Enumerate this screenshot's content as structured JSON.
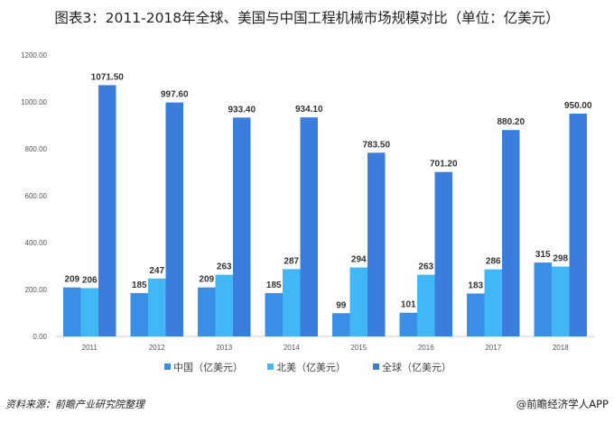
{
  "chart_data": {
    "type": "bar",
    "title": "图表3：2011-2018年全球、美国与中国工程机械市场规模对比（单位：亿美元）",
    "xlabel": "",
    "ylabel": "",
    "ylim": [
      0,
      1200
    ],
    "yticks": [
      "0.00",
      "200.00",
      "400.00",
      "600.00",
      "800.00",
      "1000.00",
      "1200.00"
    ],
    "categories": [
      "2011",
      "2012",
      "2013",
      "2014",
      "2015",
      "2016",
      "2017",
      "2018"
    ],
    "series": [
      {
        "name": "中国（亿美元）",
        "color": "#3a8ee6",
        "values": [
          209,
          185,
          209,
          185,
          99,
          101,
          183,
          315
        ],
        "labels": [
          "209",
          "185",
          "209",
          "185",
          "99",
          "101",
          "183",
          "315"
        ]
      },
      {
        "name": "北美（亿美元）",
        "color": "#42b7f5",
        "values": [
          206,
          247,
          263,
          287,
          294,
          263,
          286,
          298
        ],
        "labels": [
          "206",
          "247",
          "263",
          "287",
          "294",
          "263",
          "286",
          "298"
        ]
      },
      {
        "name": "全球（亿美元）",
        "color": "#3b7ddd",
        "values": [
          1071.5,
          997.6,
          933.4,
          934.1,
          783.5,
          701.2,
          880.2,
          950.0
        ],
        "labels": [
          "1071.50",
          "997.60",
          "933.40",
          "934.10",
          "783.50",
          "701.20",
          "880.20",
          "950.00"
        ]
      }
    ],
    "grid": false,
    "legend": "bottom"
  },
  "footer": {
    "source": "资料来源：前瞻产业研究院整理",
    "brand": "@前瞻经济学人APP"
  }
}
